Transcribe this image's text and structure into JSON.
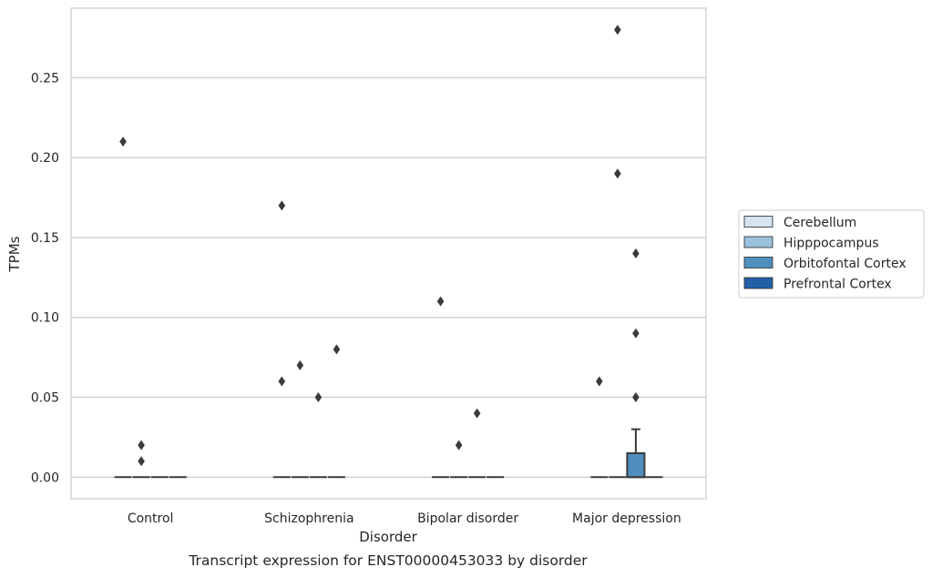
{
  "caption": "Transcript expression for ENST00000453033 by disorder",
  "colors": {
    "Cerebellum": "#d4e4f1",
    "Hipppocampus": "#9ac1db",
    "Orbitofontal Cortex": "#4f8fc0",
    "Prefrontal Cortex": "#2160a6",
    "grid": "#cccccc",
    "frame": "#cccccc",
    "ink": "#3a3a3a"
  },
  "chart_data": {
    "type": "box",
    "title": "",
    "xlabel": "Disorder",
    "ylabel": "TPMs",
    "ylim": [
      -0.0135,
      0.2935
    ],
    "yticks": [
      0.0,
      0.05,
      0.1,
      0.15,
      0.2,
      0.25
    ],
    "ytick_labels": [
      "0.00",
      "0.05",
      "0.10",
      "0.15",
      "0.20",
      "0.25"
    ],
    "grid": true,
    "legend_position": "right",
    "categories": [
      "Control",
      "Schizophrenia",
      "Bipolar disorder",
      "Major depression"
    ],
    "series": [
      {
        "name": "Cerebellum",
        "boxes": [
          {
            "q1": 0,
            "median": 0,
            "q3": 0,
            "whislo": 0,
            "whishi": 0,
            "fliers": [
              0.21
            ]
          },
          {
            "q1": 0,
            "median": 0,
            "q3": 0,
            "whislo": 0,
            "whishi": 0,
            "fliers": [
              0.06,
              0.17
            ]
          },
          {
            "q1": 0,
            "median": 0,
            "q3": 0,
            "whislo": 0,
            "whishi": 0,
            "fliers": [
              0.11
            ]
          },
          {
            "q1": 0,
            "median": 0,
            "q3": 0,
            "whislo": 0,
            "whishi": 0,
            "fliers": [
              0.06
            ]
          }
        ]
      },
      {
        "name": "Hipppocampus",
        "boxes": [
          {
            "q1": 0,
            "median": 0,
            "q3": 0,
            "whislo": 0,
            "whishi": 0,
            "fliers": [
              0.01,
              0.02
            ]
          },
          {
            "q1": 0,
            "median": 0,
            "q3": 0,
            "whislo": 0,
            "whishi": 0,
            "fliers": [
              0.07
            ]
          },
          {
            "q1": 0,
            "median": 0,
            "q3": 0,
            "whislo": 0,
            "whishi": 0,
            "fliers": [
              0.02
            ]
          },
          {
            "q1": 0,
            "median": 0,
            "q3": 0,
            "whislo": 0,
            "whishi": 0,
            "fliers": [
              0.19,
              0.28
            ]
          }
        ]
      },
      {
        "name": "Orbitofontal Cortex",
        "boxes": [
          {
            "q1": 0,
            "median": 0,
            "q3": 0,
            "whislo": 0,
            "whishi": 0,
            "fliers": []
          },
          {
            "q1": 0,
            "median": 0,
            "q3": 0,
            "whislo": 0,
            "whishi": 0,
            "fliers": [
              0.05
            ]
          },
          {
            "q1": 0,
            "median": 0,
            "q3": 0,
            "whislo": 0,
            "whishi": 0,
            "fliers": [
              0.04
            ]
          },
          {
            "q1": 0,
            "median": 0,
            "q3": 0.015,
            "whislo": 0,
            "whishi": 0.03,
            "fliers": [
              0.05,
              0.09,
              0.14
            ]
          }
        ]
      },
      {
        "name": "Prefrontal Cortex",
        "boxes": [
          {
            "q1": 0,
            "median": 0,
            "q3": 0,
            "whislo": 0,
            "whishi": 0,
            "fliers": []
          },
          {
            "q1": 0,
            "median": 0,
            "q3": 0,
            "whislo": 0,
            "whishi": 0,
            "fliers": [
              0.08
            ]
          },
          {
            "q1": 0,
            "median": 0,
            "q3": 0,
            "whislo": 0,
            "whishi": 0,
            "fliers": []
          },
          {
            "q1": 0,
            "median": 0,
            "q3": 0,
            "whislo": 0,
            "whishi": 0,
            "fliers": []
          }
        ]
      }
    ]
  }
}
